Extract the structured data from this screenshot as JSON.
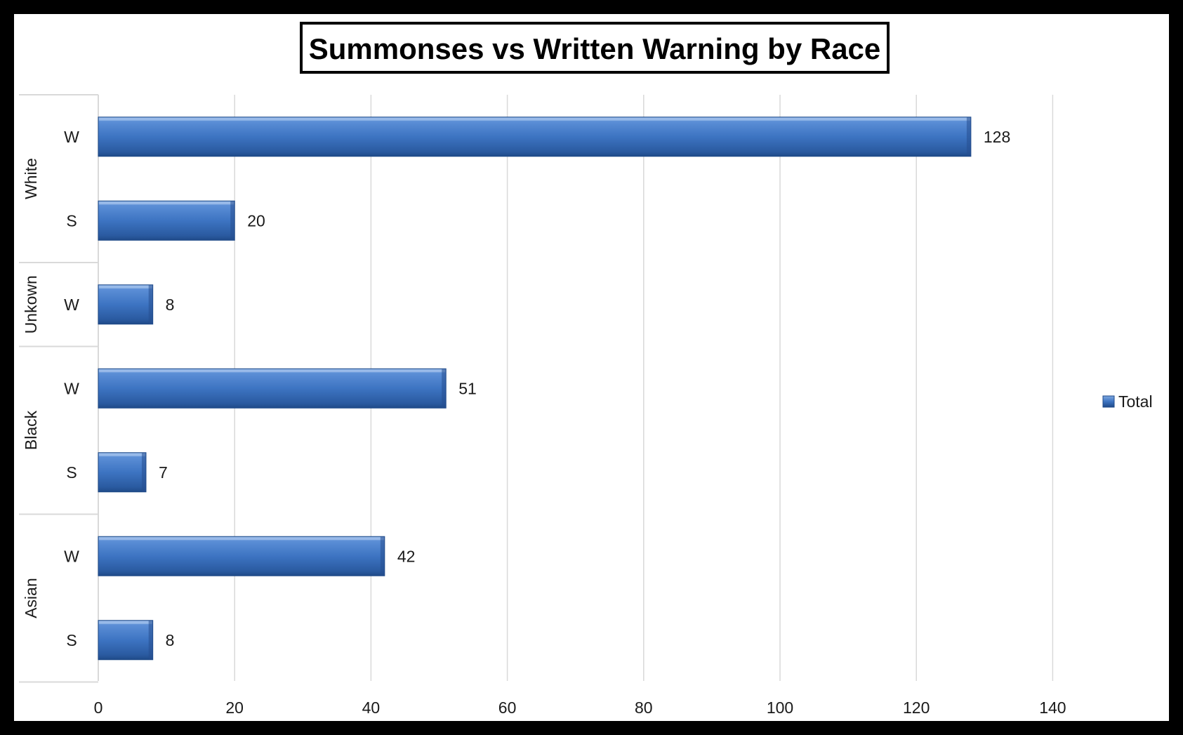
{
  "chart_data": {
    "type": "bar",
    "orientation": "horizontal",
    "title": "Summonses vs Written Warning by Race",
    "xlabel": "",
    "ylabel": "",
    "xlim": [
      0,
      160
    ],
    "xticks": [
      0,
      20,
      40,
      60,
      80,
      100,
      120,
      140
    ],
    "grid": true,
    "legend_position": "right",
    "groups": [
      {
        "name": "White",
        "categories": [
          "W",
          "S"
        ],
        "values": [
          128,
          20
        ]
      },
      {
        "name": "Unkown",
        "categories": [
          "W"
        ],
        "values": [
          8
        ]
      },
      {
        "name": "Black",
        "categories": [
          "W",
          "S"
        ],
        "values": [
          51,
          7
        ]
      },
      {
        "name": "Asian",
        "categories": [
          "W",
          "S"
        ],
        "values": [
          42,
          8
        ]
      }
    ],
    "series": [
      {
        "name": "Total",
        "color": "#3d74c2"
      }
    ]
  }
}
